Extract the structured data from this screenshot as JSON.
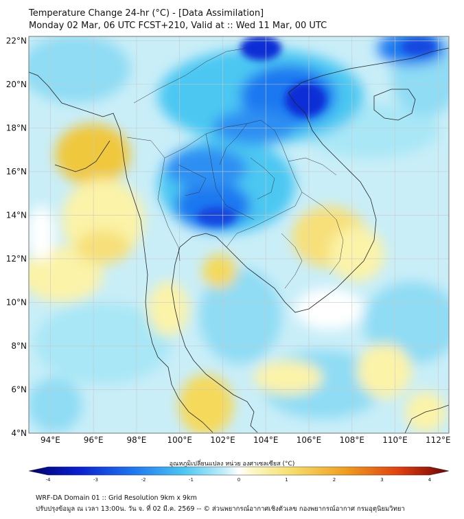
{
  "header": {
    "title_line1": "Temperature Change 24-hr (°C) - [Data Assimilation]",
    "title_line2": "Monday 02 Mar, 06 UTC FCST+210, Valid at :: Wed 11 Mar, 00 UTC"
  },
  "map": {
    "lat_labels": [
      "22°N",
      "20°N",
      "18°N",
      "16°N",
      "14°N",
      "12°N",
      "10°N",
      "8°N",
      "6°N",
      "4°N"
    ],
    "lon_labels": [
      "94°E",
      "96°E",
      "98°E",
      "100°E",
      "102°E",
      "104°E",
      "106°E",
      "108°E",
      "110°E",
      "112°E"
    ],
    "lon_range": [
      93,
      112.5
    ],
    "lat_range": [
      4,
      22.2
    ],
    "field_colors": {
      "strong_cold": "#0a2fd6",
      "cold": "#1f78f0",
      "cool": "#4cc7f2",
      "slight_cool": "#a8e6f6",
      "neutral": "#ffffff",
      "slight_warm": "#fbf3a8",
      "warm": "#f0c83c"
    }
  },
  "colorbar": {
    "label": "อุณหภูมิเปลี่ยนแปลง หน่วย องศาเซลเซียส (°C)",
    "ticks": [
      "-4",
      "-3",
      "-2",
      "-1",
      "0",
      "1",
      "2",
      "3",
      "4"
    ],
    "range": [
      -4,
      4
    ]
  },
  "footer": {
    "line1": "WRF-DA Domain 01 :: Grid Resolution 9km x 9km",
    "line2": "ปรับปรุงข้อมูล ณ เวลา 13:00น. วัน จ. ที่ 02 มี.ค. 2569 -- © ส่วนพยากรณ์อากาศเชิงตัวเลข กองพยากรณ์อากาศ กรมอุตุนิยมวิทยา"
  }
}
